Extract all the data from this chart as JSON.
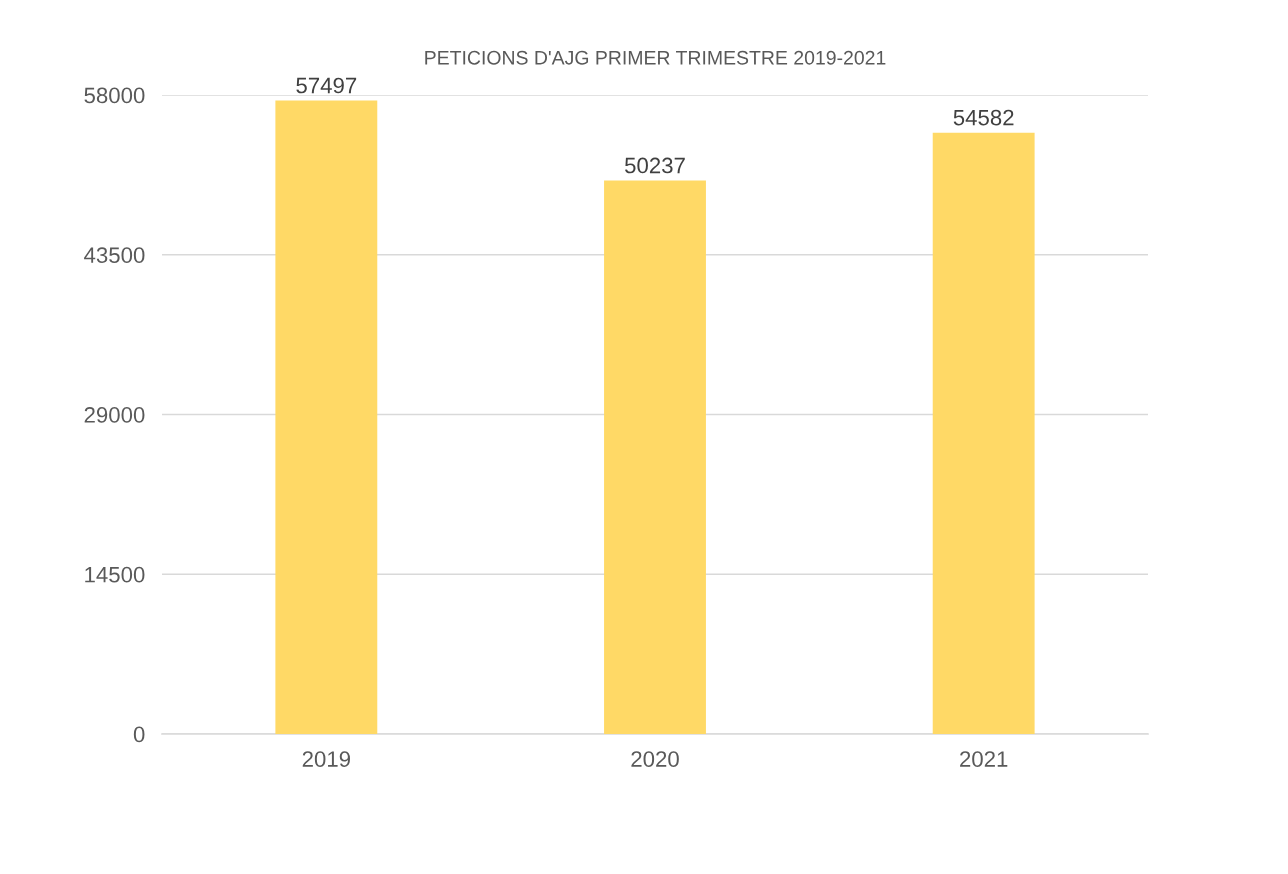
{
  "chart_data": {
    "type": "bar",
    "title": "PETICIONS D'AJG PRIMER TRIMESTRE 2019-2021",
    "categories": [
      "2019",
      "2020",
      "2021"
    ],
    "values": [
      57497,
      50237,
      54582
    ],
    "color": "#ffd966",
    "ylim": [
      0,
      58000
    ],
    "yticks": [
      0,
      14500,
      29000,
      43500,
      58000
    ],
    "grid": "y",
    "data_labels": true
  }
}
